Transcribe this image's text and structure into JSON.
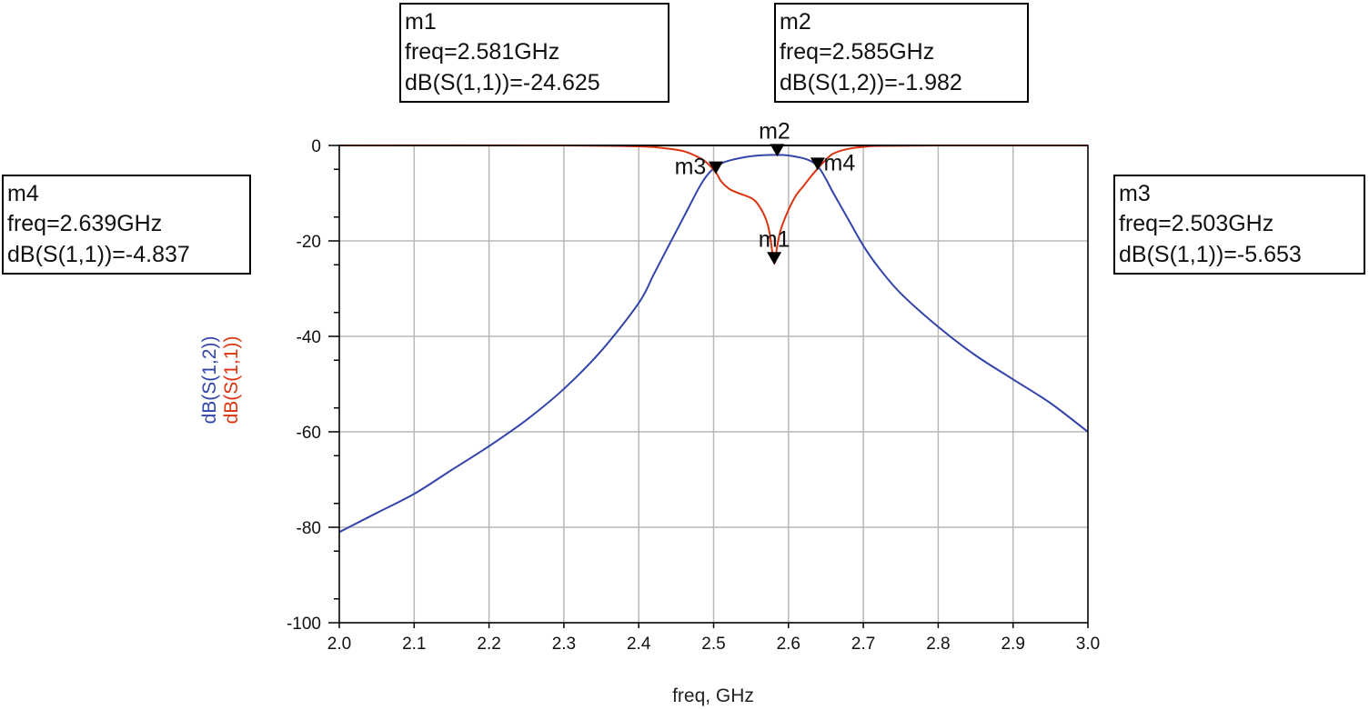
{
  "chart_data": {
    "type": "line",
    "xlabel": "freq, GHz",
    "ylabels": [
      "dB(S(1,2))",
      "dB(S(1,1))"
    ],
    "xlim": [
      2.0,
      3.0
    ],
    "ylim": [
      -100,
      0
    ],
    "x_ticks": [
      "2.0",
      "2.1",
      "2.2",
      "2.3",
      "2.4",
      "2.5",
      "2.6",
      "2.7",
      "2.8",
      "2.9",
      "3.0"
    ],
    "y_ticks": [
      "0",
      "-20",
      "-40",
      "-60",
      "-80",
      "-100"
    ],
    "grid": true,
    "series": [
      {
        "name": "dB(S(1,2))",
        "color": "#3344aa",
        "x": [
          2.0,
          2.05,
          2.1,
          2.15,
          2.2,
          2.25,
          2.3,
          2.35,
          2.4,
          2.42,
          2.44,
          2.46,
          2.48,
          2.49,
          2.5,
          2.51,
          2.52,
          2.54,
          2.56,
          2.585,
          2.6,
          2.62,
          2.63,
          2.64,
          2.65,
          2.66,
          2.68,
          2.7,
          2.72,
          2.75,
          2.8,
          2.85,
          2.9,
          2.95,
          3.0
        ],
        "y": [
          -81,
          -77,
          -73,
          -68,
          -63,
          -57.5,
          -51,
          -43,
          -33,
          -27,
          -21,
          -15,
          -9,
          -6.5,
          -4.8,
          -3.8,
          -3.2,
          -2.5,
          -2.1,
          -1.982,
          -2.1,
          -2.7,
          -3.3,
          -4.5,
          -7,
          -10,
          -15.5,
          -21,
          -25.5,
          -31,
          -38,
          -44,
          -49,
          -54,
          -60
        ]
      },
      {
        "name": "dB(S(1,1))",
        "color": "#dd3311",
        "x": [
          2.0,
          2.3,
          2.4,
          2.43,
          2.46,
          2.48,
          2.49,
          2.503,
          2.51,
          2.52,
          2.53,
          2.55,
          2.56,
          2.57,
          2.575,
          2.581,
          2.585,
          2.59,
          2.6,
          2.61,
          2.62,
          2.63,
          2.639,
          2.65,
          2.66,
          2.68,
          2.7,
          2.72,
          2.8,
          3.0
        ],
        "y": [
          0,
          0,
          -0.2,
          -0.5,
          -1.2,
          -2.5,
          -3.5,
          -5.653,
          -7.5,
          -9,
          -9.8,
          -11,
          -12.5,
          -15.5,
          -18.5,
          -24.625,
          -21,
          -17.5,
          -13.5,
          -10.5,
          -8.5,
          -6.5,
          -4.837,
          -3,
          -1.7,
          -0.7,
          -0.3,
          -0.1,
          0,
          0
        ]
      }
    ],
    "markers": [
      {
        "name": "m1",
        "series": "dB(S(1,1))",
        "freq": 2.581,
        "value": -24.625,
        "lines": [
          "m1",
          "freq=2.581GHz",
          "dB(S(1,1))=-24.625"
        ]
      },
      {
        "name": "m2",
        "series": "dB(S(1,2))",
        "freq": 2.585,
        "value": -1.982,
        "lines": [
          "m2",
          "freq=2.585GHz",
          "dB(S(1,2))=-1.982"
        ]
      },
      {
        "name": "m3",
        "series": "dB(S(1,1))",
        "freq": 2.503,
        "value": -5.653,
        "lines": [
          "m3",
          "freq=2.503GHz",
          "dB(S(1,1))=-5.653"
        ]
      },
      {
        "name": "m4",
        "series": "dB(S(1,1))",
        "freq": 2.639,
        "value": -4.837,
        "lines": [
          "m4",
          "freq=2.639GHz",
          "dB(S(1,1))=-4.837"
        ]
      }
    ]
  }
}
